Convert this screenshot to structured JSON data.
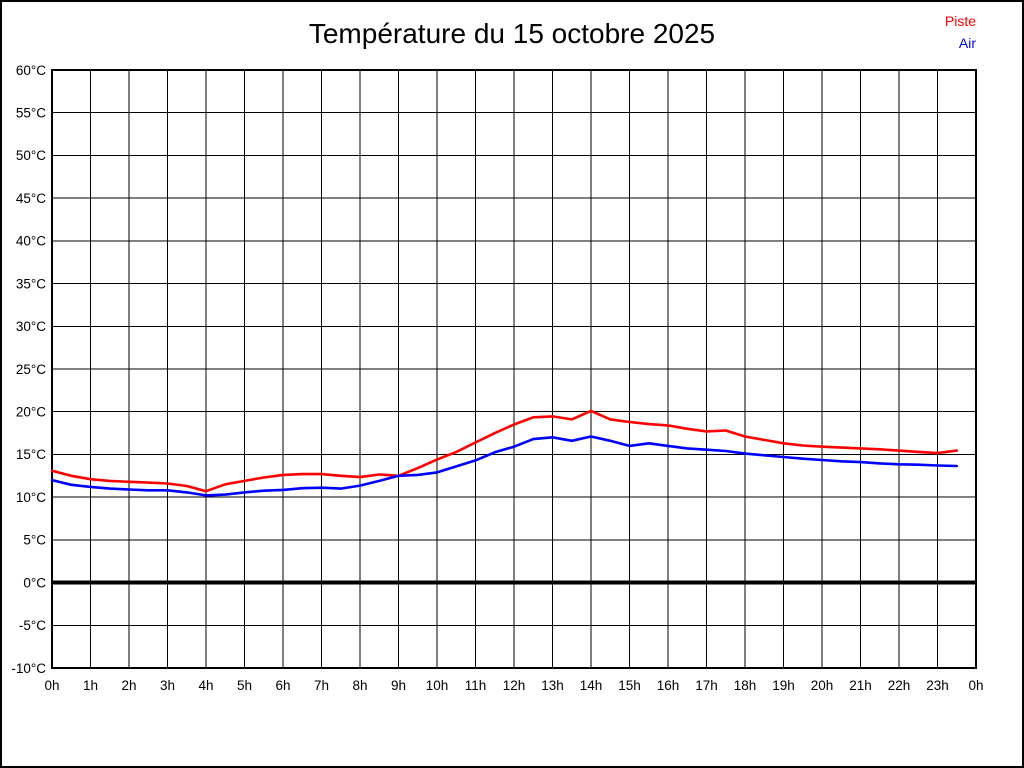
{
  "title": "Température du 15 octobre 2025",
  "legend": {
    "piste": {
      "label": "Piste",
      "color": "#ff0000"
    },
    "air": {
      "label": "Air",
      "color": "#0000ff"
    }
  },
  "axes": {
    "y_tick_labels": [
      "60°C",
      "55°C",
      "50°C",
      "45°C",
      "40°C",
      "35°C",
      "30°C",
      "25°C",
      "20°C",
      "15°C",
      "10°C",
      "5°C",
      "0°C",
      "-5°C",
      "-10°C"
    ],
    "x_tick_labels": [
      "0h",
      "1h",
      "2h",
      "3h",
      "4h",
      "5h",
      "6h",
      "7h",
      "8h",
      "9h",
      "10h",
      "11h",
      "12h",
      "13h",
      "14h",
      "15h",
      "16h",
      "17h",
      "18h",
      "19h",
      "20h",
      "21h",
      "22h",
      "23h",
      "0h"
    ]
  },
  "chart_data": {
    "type": "line",
    "title": "Température du 15 octobre 2025",
    "xlabel": "",
    "ylabel": "",
    "y_unit": "°C",
    "x_unit": "h",
    "xlim": [
      0,
      24
    ],
    "ylim": [
      -10,
      60
    ],
    "y_tick_step": 5,
    "x_tick_step": 1,
    "grid": true,
    "zero_line_bold": true,
    "legend_position": "top-right",
    "x_hours": [
      0,
      0.5,
      1,
      1.5,
      2,
      2.5,
      3,
      3.5,
      4,
      4.5,
      5,
      5.5,
      6,
      6.5,
      7,
      7.5,
      8,
      8.5,
      9,
      9.5,
      10,
      10.5,
      11,
      11.5,
      12,
      12.5,
      13,
      13.5,
      14,
      14.5,
      15,
      15.5,
      16,
      16.5,
      17,
      17.5,
      18,
      18.5,
      19,
      19.5,
      20,
      20.5,
      21,
      21.5,
      22,
      22.5,
      23,
      23.5
    ],
    "series": [
      {
        "name": "Piste",
        "color": "#ff0000",
        "values": [
          13.1,
          12.5,
          12.1,
          11.9,
          11.8,
          11.7,
          11.6,
          11.3,
          10.7,
          11.5,
          11.9,
          12.3,
          12.6,
          12.7,
          12.7,
          12.5,
          12.35,
          12.65,
          12.5,
          13.4,
          14.4,
          15.3,
          16.4,
          17.5,
          18.5,
          19.35,
          19.45,
          19.1,
          20.1,
          19.1,
          18.8,
          18.55,
          18.4,
          18.0,
          17.7,
          17.8,
          17.1,
          16.7,
          16.3,
          16.05,
          15.9,
          15.8,
          15.7,
          15.6,
          15.45,
          15.3,
          15.15,
          15.45
        ]
      },
      {
        "name": "Air",
        "color": "#0000ff",
        "values": [
          12.0,
          11.45,
          11.2,
          11.0,
          10.9,
          10.8,
          10.8,
          10.55,
          10.2,
          10.3,
          10.55,
          10.75,
          10.85,
          11.05,
          11.1,
          11.0,
          11.35,
          11.9,
          12.5,
          12.6,
          12.9,
          13.6,
          14.3,
          15.25,
          15.9,
          16.8,
          17.0,
          16.6,
          17.1,
          16.6,
          16.0,
          16.3,
          16.0,
          15.7,
          15.55,
          15.4,
          15.1,
          14.9,
          14.7,
          14.5,
          14.35,
          14.2,
          14.1,
          13.95,
          13.85,
          13.8,
          13.7,
          13.65
        ]
      }
    ]
  }
}
